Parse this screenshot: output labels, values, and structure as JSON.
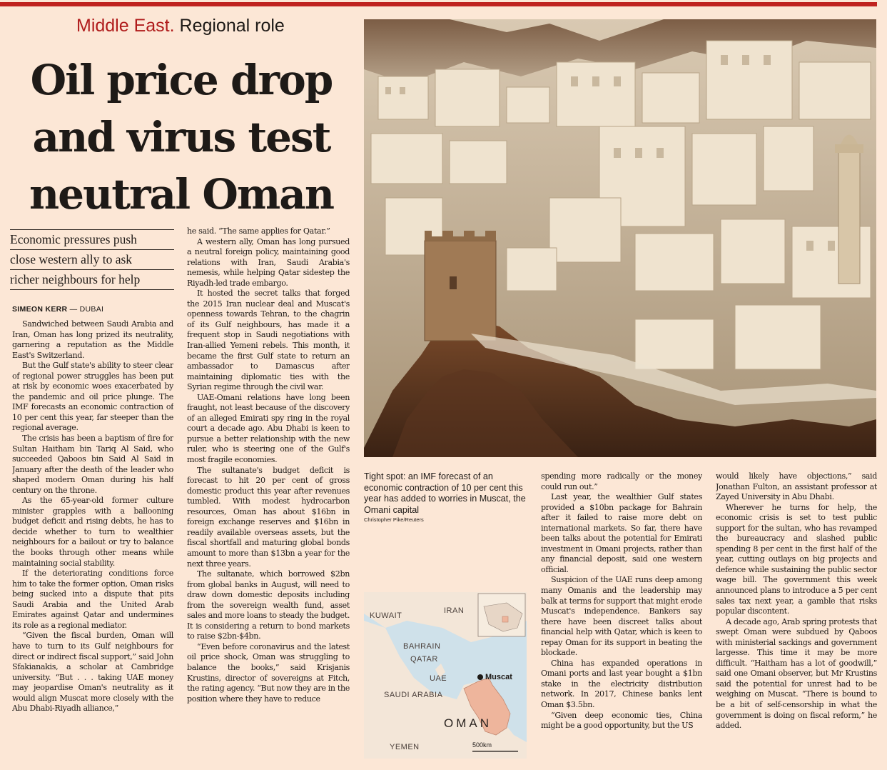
{
  "colors": {
    "accent": "#c0231f",
    "background": "#fce7d6",
    "text": "#1e1a17"
  },
  "header": {
    "section": "Middle East.",
    "subsection": "Regional role"
  },
  "headline": {
    "line1": "Oil price drop",
    "line2": "and virus test",
    "line3": "neutral Oman"
  },
  "deck": [
    "Economic pressures push",
    "close western ally to ask",
    "richer neighbours for help"
  ],
  "byline": {
    "author": "SIMEON KERR",
    "location": "— DUBAI"
  },
  "photo": {
    "caption": "Tight spot: an IMF forecast of an economic contraction of 10 per cent this year has added to worries in Muscat, the Omani capital",
    "credit": "Christopher Pike/Reuters"
  },
  "map": {
    "labels": [
      "KUWAIT",
      "IRAN",
      "BAHRAIN",
      "QATAR",
      "UAE",
      "SAUDI ARABIA",
      "OMAN",
      "YEMEN"
    ],
    "city": "Muscat",
    "scale": "500km"
  },
  "article": {
    "col1": [
      "Sandwiched between Saudi Arabia and Iran, Oman has long prized its neutrality, garnering a reputation as the Middle East's Switzerland.",
      "But the Gulf state's ability to steer clear of regional power struggles has been put at risk by economic woes exacerbated by the pandemic and oil price plunge. The IMF forecasts an economic contraction of 10 per cent this year, far steeper than the regional average.",
      "The crisis has been a baptism of fire for Sultan Haitham bin Tariq Al Said, who succeeded Qaboos bin Said Al Said in January after the death of the leader who shaped modern Oman during his half century on the throne.",
      "As the 65-year-old former culture minister grapples with a ballooning budget deficit and rising debts, he has to decide whether to turn to wealthier neighbours for a bailout or try to balance the books through other means while maintaining social stability.",
      "If the deteriorating conditions force him to take the former option, Oman risks being sucked into a dispute that pits Saudi Arabia and the United Arab Emirates against Qatar and undermines its role as a regional mediator.",
      "“Given the fiscal burden, Oman will have to turn to its Gulf neighbours for direct or indirect fiscal support,” said John Sfakianakis, a scholar at Cambridge university. “But . . . taking UAE money may jeopardise Oman's neutrality as it would align Muscat more closely with the Abu Dhabi-Riyadh alliance,”"
    ],
    "col2_cont": "he said. “The same applies for Qatar.”",
    "col2": [
      "A western ally, Oman has long pursued a neutral foreign policy, maintaining good relations with Iran, Saudi Arabia's nemesis, while helping Qatar sidestep the Riyadh-led trade embargo.",
      "It hosted the secret talks that forged the 2015 Iran nuclear deal and Muscat's openness towards Tehran, to the chagrin of its Gulf neighbours, has made it a frequent stop in Saudi negotiations with Iran-allied Yemeni rebels. This month, it became the first Gulf state to return an ambassador to Damascus after maintaining diplomatic ties with the Syrian regime through the civil war.",
      "UAE-Omani relations have long been fraught, not least because of the discovery of an alleged Emirati spy ring in the royal court a decade ago. Abu Dhabi is keen to pursue a better relationship with the new ruler, who is steering one of the Gulf's most fragile economies.",
      "The sultanate's budget deficit is forecast to hit 20 per cent of gross domestic product this year after revenues tumbled. With modest hydrocarbon resources, Oman has about $16bn in foreign exchange reserves and $16bn in readily available overseas assets, but the fiscal shortfall and maturing global bonds amount to more than $13bn a year for the next three years.",
      "The sultanate, which borrowed $2bn from global banks in August, will need to draw down domestic deposits including from the sovereign wealth fund, asset sales and more loans to steady the budget. It is considering a return to bond markets to raise $2bn-$4bn.",
      "“Even before coronavirus and the latest oil price shock, Oman was struggling to balance the books,” said Krisjanis Krustins, director of sovereigns at Fitch, the rating agency. “But now they are in the position where they have to reduce"
    ],
    "col3_cont": "spending more radically or the money could run out.”",
    "col3": [
      "Last year, the wealthier Gulf states provided a $10bn package for Bahrain after it failed to raise more debt on international markets. So far, there have been talks about the potential for Emirati investment in Omani projects, rather than any financial deposit, said one western official.",
      "Suspicion of the UAE runs deep among many Omanis and the leadership may balk at terms for support that might erode Muscat's independence. Bankers say there have been discreet talks about financial help with Qatar, which is keen to repay Oman for its support in beating the blockade.",
      "China has expanded operations in Omani ports and last year bought a $1bn stake in the electricity distribution network. In 2017, Chinese banks lent Oman $3.5bn.",
      "“Given deep economic ties, China might be a good opportunity, but the US"
    ],
    "col4_cont": "would likely have objections,” said Jonathan Fulton, an assistant professor at Zayed University in Abu Dhabi.",
    "col4": [
      "Wherever he turns for help, the economic crisis is set to test public support for the sultan, who has revamped the bureaucracy and slashed public spending 8 per cent in the first half of the year, cutting outlays on big projects and defence while sustaining the public sector wage bill. The government this week announced plans to introduce a 5 per cent sales tax next year, a gamble that risks popular discontent.",
      "A decade ago, Arab spring protests that swept Oman were subdued by Qaboos with ministerial sackings and government largesse. This time it may be more difficult. “Haitham has a lot of goodwill,” said one Omani observer, but Mr Krustins said the potential for unrest had to be weighing on Muscat. “There is bound to be a bit of self-censorship in what the government is doing on fiscal reform,” he added."
    ]
  }
}
